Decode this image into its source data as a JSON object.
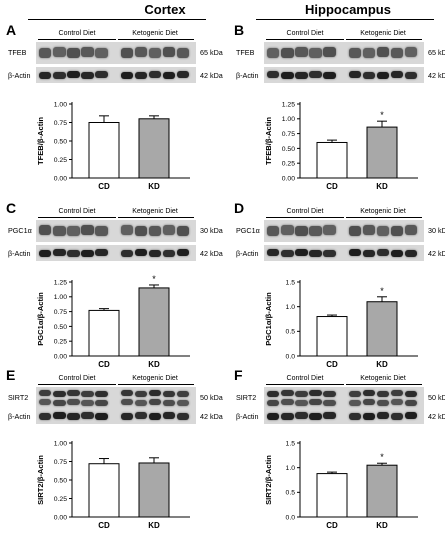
{
  "headers": {
    "left": "Cortex",
    "right": "Hippocampus"
  },
  "diet_groups": {
    "control": "Control Diet",
    "ketogenic": "Ketogenic Diet"
  },
  "colors": {
    "cd_fill": "#ffffff",
    "kd_fill": "#a8a8a8",
    "blot_bg": "#d8d8d8",
    "band": "#2b2b2b"
  },
  "panels": [
    {
      "id": "A",
      "letter": "A",
      "region": "Cortex",
      "target": {
        "label": "TFEB",
        "kda": "65 kDa"
      },
      "loading": {
        "label": "β-Actin",
        "kda": "42 kDa"
      },
      "chart_data": {
        "type": "bar",
        "categories": [
          "CD",
          "KD"
        ],
        "values": [
          0.75,
          0.8
        ],
        "errors": [
          0.09,
          0.04
        ],
        "ylabel": "TFEB/β-Actin",
        "ylim": [
          0,
          1.0
        ],
        "yticks": [
          "0.00",
          "0.25",
          "0.50",
          "0.75",
          "1.00"
        ],
        "significance": [
          "",
          ""
        ]
      }
    },
    {
      "id": "B",
      "letter": "B",
      "region": "Hippocampus",
      "target": {
        "label": "TFEB",
        "kda": "65 kDa"
      },
      "loading": {
        "label": "β-Actin",
        "kda": "42 kDa"
      },
      "chart_data": {
        "type": "bar",
        "categories": [
          "CD",
          "KD"
        ],
        "values": [
          0.6,
          0.86
        ],
        "errors": [
          0.04,
          0.1
        ],
        "ylabel": "TFEB/β-Actin",
        "ylim": [
          0,
          1.25
        ],
        "yticks": [
          "0.00",
          "0.25",
          "0.50",
          "0.75",
          "1.00",
          "1.25"
        ],
        "significance": [
          "",
          "*"
        ]
      }
    },
    {
      "id": "C",
      "letter": "C",
      "region": "Cortex",
      "target": {
        "label": "PGC1α",
        "kda": "30 kDa"
      },
      "loading": {
        "label": "β-Actin",
        "kda": "42 kDa"
      },
      "chart_data": {
        "type": "bar",
        "categories": [
          "CD",
          "KD"
        ],
        "values": [
          0.77,
          1.15
        ],
        "errors": [
          0.03,
          0.05
        ],
        "ylabel": "PGC1α/β-Actin",
        "ylim": [
          0,
          1.25
        ],
        "yticks": [
          "0.00",
          "0.25",
          "0.50",
          "0.75",
          "1.00",
          "1.25"
        ],
        "significance": [
          "",
          "*"
        ]
      }
    },
    {
      "id": "D",
      "letter": "D",
      "region": "Hippocampus",
      "target": {
        "label": "PGC1α",
        "kda": "30 kDa"
      },
      "loading": {
        "label": "β-Actin",
        "kda": "42 kDa"
      },
      "chart_data": {
        "type": "bar",
        "categories": [
          "CD",
          "KD"
        ],
        "values": [
          0.8,
          1.1
        ],
        "errors": [
          0.03,
          0.1
        ],
        "ylabel": "PGC1α/β-Actin",
        "ylim": [
          0,
          1.5
        ],
        "yticks": [
          "0.0",
          "0.5",
          "1.0",
          "1.5"
        ],
        "significance": [
          "",
          "*"
        ]
      }
    },
    {
      "id": "E",
      "letter": "E",
      "region": "Cortex",
      "target": {
        "label": "SIRT2",
        "kda": "50 kDa"
      },
      "loading": {
        "label": "β-Actin",
        "kda": "42 kDa"
      },
      "chart_data": {
        "type": "bar",
        "categories": [
          "CD",
          "KD"
        ],
        "values": [
          0.72,
          0.73
        ],
        "errors": [
          0.07,
          0.07
        ],
        "ylabel": "SIRT2/β-Actin",
        "ylim": [
          0,
          1.0
        ],
        "yticks": [
          "0.00",
          "0.25",
          "0.50",
          "0.75",
          "1.00"
        ],
        "significance": [
          "",
          ""
        ]
      }
    },
    {
      "id": "F",
      "letter": "F",
      "region": "Hippocampus",
      "target": {
        "label": "SIRT2",
        "kda": "50 kDa"
      },
      "loading": {
        "label": "β-Actin",
        "kda": "42 kDa"
      },
      "chart_data": {
        "type": "bar",
        "categories": [
          "CD",
          "KD"
        ],
        "values": [
          0.88,
          1.05
        ],
        "errors": [
          0.03,
          0.04
        ],
        "ylabel": "SIRT2/β-Actin",
        "ylim": [
          0,
          1.5
        ],
        "yticks": [
          "0.0",
          "0.5",
          "1.0",
          "1.5"
        ],
        "significance": [
          "",
          "*"
        ]
      }
    }
  ]
}
